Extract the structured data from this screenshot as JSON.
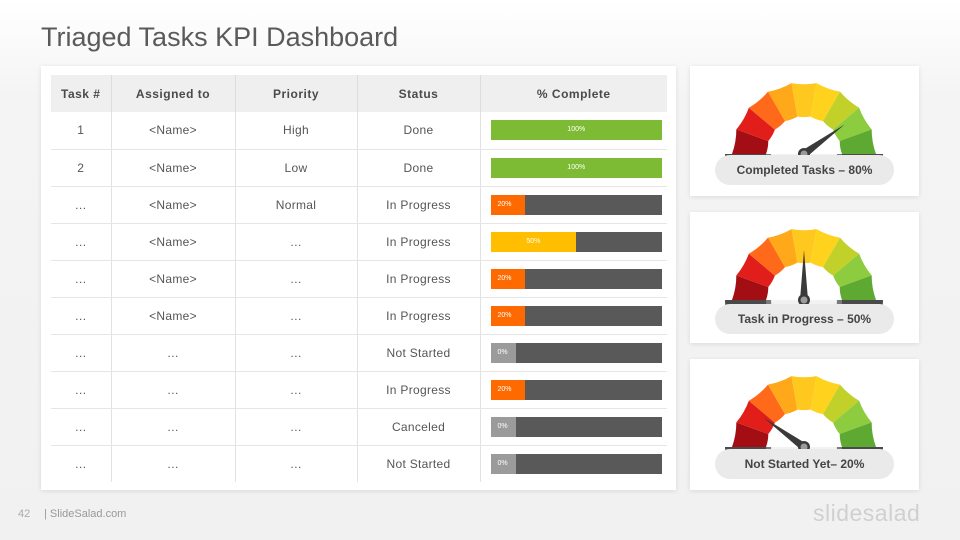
{
  "title": "Triaged Tasks KPI Dashboard",
  "table": {
    "headers": [
      "Task #",
      "Assigned to",
      "Priority",
      "Status",
      "% Complete"
    ],
    "rows": [
      {
        "task": "1",
        "assigned": "<Name>",
        "priority": "High",
        "status": "Done",
        "percent_label": "100%",
        "percent": 100,
        "color": "#7dbb34"
      },
      {
        "task": "2",
        "assigned": "<Name>",
        "priority": "Low",
        "status": "Done",
        "percent_label": "100%",
        "percent": 100,
        "color": "#7dbb34"
      },
      {
        "task": "…",
        "assigned": "<Name>",
        "priority": "Normal",
        "status": "In Progress",
        "percent_label": "20%",
        "percent": 20,
        "color": "#ff6a00"
      },
      {
        "task": "…",
        "assigned": "<Name>",
        "priority": "…",
        "status": "In Progress",
        "percent_label": "50%",
        "percent": 50,
        "color": "#ffbf00"
      },
      {
        "task": "…",
        "assigned": "<Name>",
        "priority": "…",
        "status": "In Progress",
        "percent_label": "20%",
        "percent": 20,
        "color": "#ff6a00"
      },
      {
        "task": "…",
        "assigned": "<Name>",
        "priority": "…",
        "status": "In Progress",
        "percent_label": "20%",
        "percent": 20,
        "color": "#ff6a00"
      },
      {
        "task": "…",
        "assigned": "…",
        "priority": "…",
        "status": "Not Started",
        "percent_label": "0%",
        "percent": 0,
        "color": "#9b9b9b"
      },
      {
        "task": "…",
        "assigned": "…",
        "priority": "…",
        "status": "In Progress",
        "percent_label": "20%",
        "percent": 20,
        "color": "#ff6a00"
      },
      {
        "task": "…",
        "assigned": "…",
        "priority": "…",
        "status": "Canceled",
        "percent_label": "0%",
        "percent": 0,
        "color": "#9b9b9b"
      },
      {
        "task": "…",
        "assigned": "…",
        "priority": "…",
        "status": "Not Started",
        "percent_label": "0%",
        "percent": 0,
        "color": "#9b9b9b"
      }
    ]
  },
  "gauges": [
    {
      "label": "Completed Tasks – 80%",
      "value": 80
    },
    {
      "label": "Task in Progress – 50%",
      "value": 50
    },
    {
      "label": "Not Started Yet– 20%",
      "value": 20
    }
  ],
  "gauge_colors": [
    "#a30d14",
    "#e21e1a",
    "#ff6a1a",
    "#ffa81a",
    "#ffc81e",
    "#ffd21e",
    "#c2d12a",
    "#8ccc3e",
    "#5ea932"
  ],
  "empty_bar_color": "#595959",
  "footer": {
    "page_number": "42",
    "site": "| SlideSalad.com",
    "brand": "slidesalad"
  }
}
